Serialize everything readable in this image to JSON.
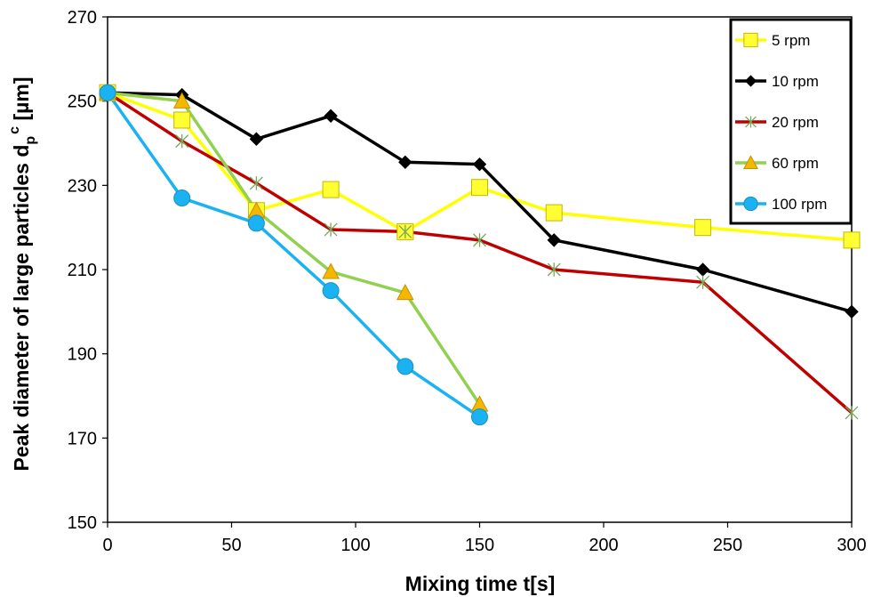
{
  "chart_data": {
    "type": "line",
    "xlabel": "Mixing time t[s]",
    "ylabel": {
      "main": "Peak diameter of large particles d",
      "sub": "p",
      "sup": "c",
      "unit": " [µm]"
    },
    "xlim": [
      0,
      300
    ],
    "ylim": [
      150,
      270
    ],
    "xticks": [
      0,
      50,
      100,
      150,
      200,
      250,
      300
    ],
    "yticks": [
      150,
      170,
      190,
      210,
      230,
      250,
      270
    ],
    "legend_position": "top-right",
    "series": [
      {
        "name": "5 rpm",
        "color": "#ffff00",
        "marker": "square",
        "marker_fill": "#ffff33",
        "marker_stroke": "#c8b400",
        "x": [
          0,
          30,
          60,
          90,
          120,
          150,
          180,
          240,
          300
        ],
        "y": [
          252,
          245.5,
          224,
          229,
          219,
          229.5,
          223.5,
          220,
          217
        ]
      },
      {
        "name": "10 rpm",
        "color": "#000000",
        "marker": "diamond",
        "marker_fill": "#000000",
        "marker_stroke": "#000000",
        "x": [
          0,
          30,
          60,
          90,
          120,
          150,
          180,
          240,
          300
        ],
        "y": [
          252,
          251.5,
          241,
          246.5,
          235.5,
          235,
          217,
          210,
          200
        ]
      },
      {
        "name": "20 rpm",
        "color": "#c00000",
        "marker": "star",
        "marker_fill": "none",
        "marker_stroke": "#77a85a",
        "x": [
          0,
          30,
          60,
          90,
          120,
          150,
          180,
          240,
          300
        ],
        "y": [
          252,
          240.5,
          230.5,
          219.5,
          219,
          217,
          210,
          207,
          176
        ]
      },
      {
        "name": "60 rpm",
        "color": "#92d050",
        "marker": "triangle",
        "marker_fill": "#f5b800",
        "marker_stroke": "#c89000",
        "x": [
          0,
          30,
          60,
          90,
          120,
          150
        ],
        "y": [
          252,
          250,
          224,
          209.5,
          204.5,
          178
        ]
      },
      {
        "name": "100 rpm",
        "color": "#1ab2f0",
        "marker": "circle",
        "marker_fill": "#1ab2f0",
        "marker_stroke": "#1a8fc0",
        "x": [
          0,
          30,
          60,
          90,
          120,
          150
        ],
        "y": [
          252,
          227,
          221,
          205,
          187,
          175
        ]
      }
    ]
  }
}
